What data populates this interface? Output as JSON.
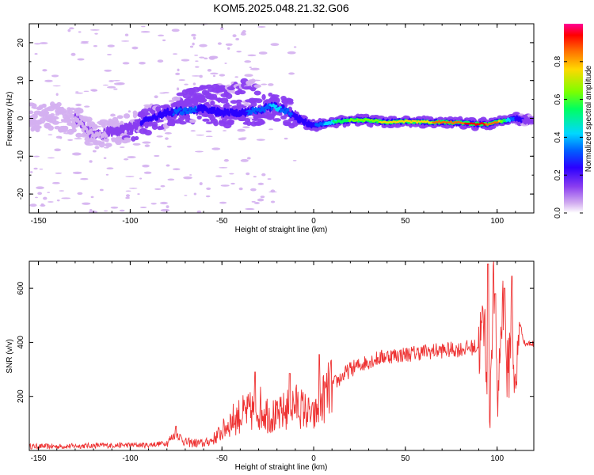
{
  "title": "KOM5.2025.048.21.32.G06",
  "chart_data": [
    {
      "type": "heatmap",
      "xlabel": "Height of straight line (km)",
      "ylabel": "Frequency (Hz)",
      "xlim": [
        -155,
        120
      ],
      "ylim": [
        -25,
        25
      ],
      "xticks": [
        -150,
        -100,
        -50,
        0,
        50,
        100
      ],
      "xtick_labels": [
        "-150",
        "-100",
        "-50",
        "0",
        "50",
        "100"
      ],
      "yticks": [
        -20,
        -10,
        0,
        10,
        20
      ],
      "ytick_labels": [
        "-20",
        "-10",
        "0",
        "10",
        "20"
      ],
      "ridge": {
        "x": [
          -150,
          -140,
          -130,
          -120,
          -110,
          -100,
          -90,
          -80,
          -70,
          -60,
          -50,
          -40,
          -30,
          -25,
          -20,
          -15,
          -10,
          -5,
          0,
          10,
          20,
          30,
          40,
          50,
          60,
          70,
          80,
          90,
          95,
          100,
          105,
          110,
          115,
          120
        ],
        "y": [
          0.5,
          0.3,
          -0.2,
          -4.5,
          -3.5,
          -2.5,
          -0.5,
          1.5,
          2,
          2.5,
          1.5,
          1.5,
          2,
          3,
          3,
          2,
          0.5,
          -1,
          -2,
          -1,
          -0.5,
          -0.5,
          -1,
          -0.8,
          -1,
          -1,
          -1.2,
          -1.5,
          -1.5,
          -1,
          -0.5,
          0,
          -0.5,
          -0.8
        ],
        "amplitude": [
          0.15,
          0.1,
          0.08,
          0.1,
          0.15,
          0.2,
          0.25,
          0.3,
          0.35,
          0.3,
          0.3,
          0.3,
          0.35,
          0.4,
          0.45,
          0.35,
          0.3,
          0.28,
          0.3,
          0.5,
          0.6,
          0.65,
          0.7,
          0.72,
          0.75,
          0.8,
          0.85,
          0.9,
          0.85,
          0.8,
          0.5,
          0.3,
          0.2,
          0.15
        ]
      },
      "upper_branch": {
        "x": [
          -75,
          -65,
          -55,
          -45,
          -35,
          -30
        ],
        "y": [
          4,
          6,
          7,
          8,
          9,
          8
        ],
        "amplitude": [
          0.1,
          0.15,
          0.15,
          0.12,
          0.1,
          0.08
        ]
      },
      "colorbar": {
        "label": "Normalized spectral amplitude",
        "range": [
          0,
          1
        ],
        "ticks": [
          0,
          0.2,
          0.4,
          0.6,
          0.8
        ],
        "tick_labels": [
          "0.0",
          "0.2",
          "0.4",
          "0.6",
          "0.8"
        ],
        "colors": [
          "#ffffff",
          "#d4b0f0",
          "#8a3df0",
          "#2a00ff",
          "#0060ff",
          "#00d8ff",
          "#00ff60",
          "#7cff00",
          "#ffd800",
          "#ff6a00",
          "#ff0000",
          "#ff0096"
        ]
      }
    },
    {
      "type": "line",
      "xlabel": "Height of straight line (km)",
      "ylabel": "SNR (v/v)",
      "xlim": [
        -155,
        120
      ],
      "ylim": [
        0,
        700
      ],
      "xticks": [
        -150,
        -100,
        -50,
        0,
        50,
        100
      ],
      "xtick_labels": [
        "-150",
        "-100",
        "-50",
        "0",
        "50",
        "100"
      ],
      "yticks": [
        200,
        400,
        600
      ],
      "ytick_labels": [
        "200",
        "400",
        "600"
      ],
      "color": "#ee3333",
      "series": [
        {
          "name": "SNR",
          "x": [
            -155,
            -140,
            -120,
            -100,
            -90,
            -80,
            -75,
            -70,
            -60,
            -55,
            -50,
            -45,
            -40,
            -35,
            -30,
            -25,
            -20,
            -15,
            -10,
            -5,
            0,
            5,
            10,
            20,
            30,
            40,
            50,
            60,
            70,
            80,
            90,
            93,
            96,
            98,
            100,
            103,
            106,
            108,
            110,
            112,
            115,
            120
          ],
          "y": [
            15,
            15,
            18,
            20,
            20,
            28,
            65,
            30,
            25,
            40,
            70,
            110,
            130,
            140,
            160,
            140,
            120,
            150,
            170,
            150,
            120,
            190,
            240,
            300,
            330,
            350,
            355,
            365,
            370,
            375,
            385,
            470,
            160,
            650,
            150,
            560,
            250,
            540,
            160,
            480,
            395,
            395
          ],
          "spikes": [
            {
              "x": -75,
              "y": 90
            },
            {
              "x": -32,
              "y": 290
            },
            {
              "x": -13,
              "y": 285
            },
            {
              "x": 3,
              "y": 355
            },
            {
              "x": 95,
              "y": 690
            },
            {
              "x": 99,
              "y": 580
            },
            {
              "x": 104,
              "y": 600
            },
            {
              "x": 108,
              "y": 645
            }
          ]
        }
      ]
    }
  ]
}
